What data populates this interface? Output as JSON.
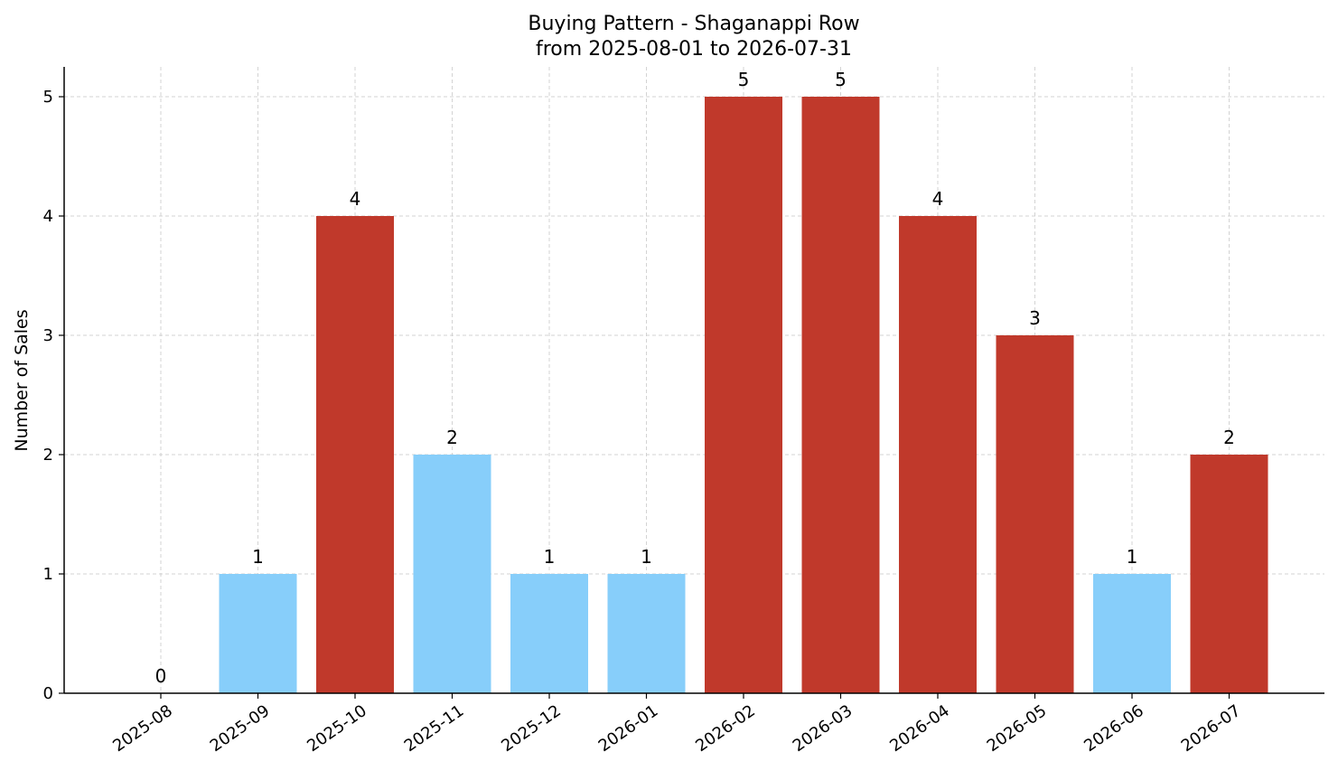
{
  "chart_data": {
    "type": "bar",
    "title": "Buying Pattern - Shaganappi Row",
    "subtitle": "from 2025-08-01 to 2026-07-31",
    "xlabel": "",
    "ylabel": "Number of Sales",
    "categories": [
      "2025-08",
      "2025-09",
      "2025-10",
      "2025-11",
      "2025-12",
      "2026-01",
      "2026-02",
      "2026-03",
      "2026-04",
      "2026-05",
      "2026-06",
      "2026-07"
    ],
    "values": [
      0,
      1,
      4,
      2,
      1,
      1,
      5,
      5,
      4,
      3,
      1,
      2
    ],
    "value_labels": [
      "0",
      "1",
      "4",
      "2",
      "1",
      "1",
      "5",
      "5",
      "4",
      "3",
      "1",
      "2"
    ],
    "bar_colors": [
      "#87CEFA",
      "#87CEFA",
      "#C0392B",
      "#87CEFA",
      "#87CEFA",
      "#87CEFA",
      "#C0392B",
      "#C0392B",
      "#C0392B",
      "#C0392B",
      "#87CEFA",
      "#C0392B"
    ],
    "ylim": [
      0,
      5.25
    ],
    "yticks": [
      "0",
      "1",
      "2",
      "3",
      "4",
      "5"
    ],
    "grid": true,
    "legend": false
  }
}
